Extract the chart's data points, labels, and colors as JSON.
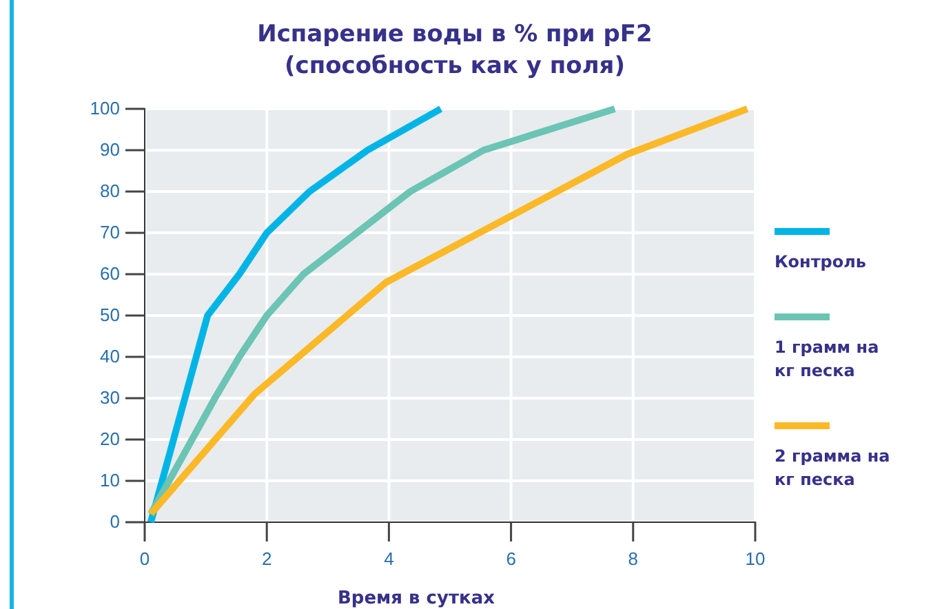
{
  "chart_data": {
    "type": "line",
    "title": "Испарение воды в % при pF2\n(способность как у поля)",
    "xlabel": "Время в сутках",
    "xlim": [
      0,
      10
    ],
    "xticks": [
      0,
      2,
      4,
      6,
      8,
      10
    ],
    "ylim": [
      0,
      100
    ],
    "yticks": [
      0,
      10,
      20,
      30,
      40,
      50,
      60,
      70,
      80,
      90,
      100
    ],
    "grid": true,
    "legend": "right",
    "line_style": "solid",
    "marker": "none",
    "series": [
      {
        "name": "Контроль",
        "color": "#00b5e5",
        "x": [
          0.1,
          1.03,
          1.55,
          2.0,
          2.7,
          3.65,
          4.85
        ],
        "values": [
          0,
          50,
          60,
          70,
          80,
          90,
          100
        ]
      },
      {
        "name": "1 грамм на кг песка",
        "color": "#6cc4b4",
        "x": [
          0.1,
          1.15,
          1.55,
          2.0,
          2.6,
          4.35,
          5.55,
          7.7
        ],
        "values": [
          2,
          30,
          40,
          50,
          60,
          80,
          90,
          100
        ]
      },
      {
        "name": "2 грамма на кг песка",
        "color": "#fbb928",
        "x": [
          0.1,
          1.8,
          3.95,
          7.9,
          9.87
        ],
        "values": [
          2,
          31,
          58,
          89,
          100
        ]
      }
    ]
  }
}
